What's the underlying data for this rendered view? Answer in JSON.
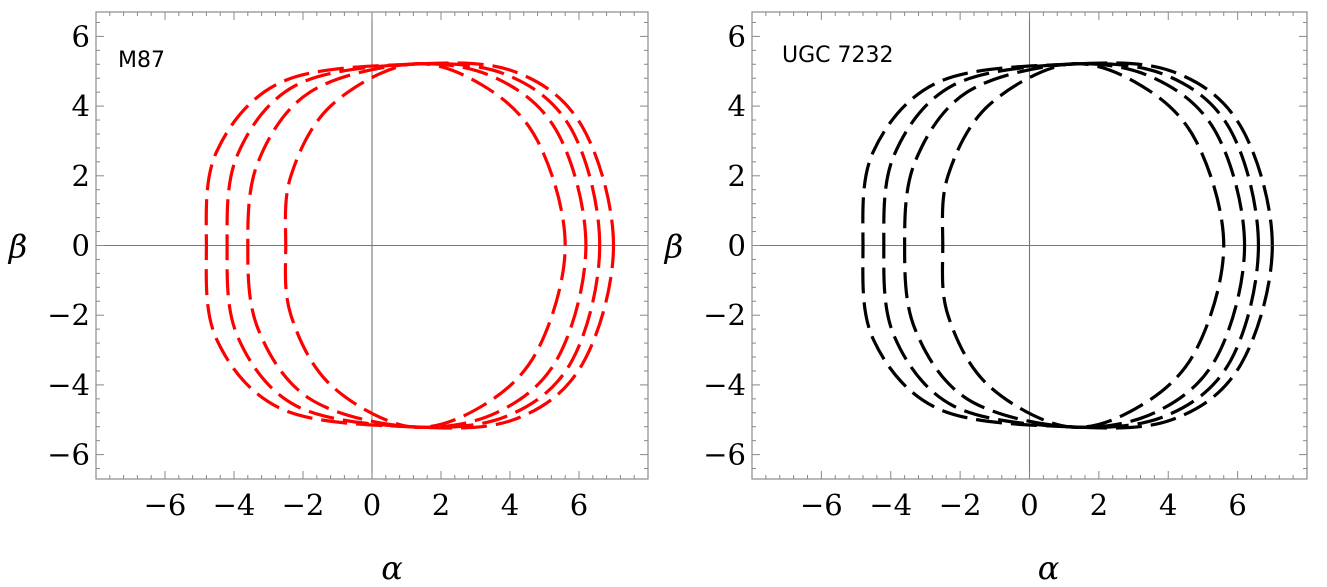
{
  "chart_data": [
    {
      "type": "line",
      "panel_label": "M87",
      "color": "#ff0000",
      "line_style": "dashed",
      "xlabel": "α",
      "ylabel": "β",
      "xlim": [
        -8,
        8
      ],
      "ylim": [
        -6.7,
        6.7
      ],
      "xticks": [
        -6,
        -4,
        -2,
        0,
        2,
        4,
        6
      ],
      "yticks": [
        -6,
        -4,
        -2,
        0,
        2,
        4,
        6
      ],
      "grid": false,
      "series": [
        {
          "points": [
            [
              5.6,
              0
            ],
            [
              4.8,
              3.0
            ],
            [
              3.2,
              4.6
            ],
            [
              1.1,
              5.2
            ],
            [
              -1.2,
              4.0
            ],
            [
              -2.35,
              2.0
            ],
            [
              -2.5,
              0
            ],
            [
              -2.35,
              -2.0
            ],
            [
              -1.2,
              -4.0
            ],
            [
              1.1,
              -5.2
            ],
            [
              3.2,
              -4.6
            ],
            [
              4.8,
              -3.0
            ],
            [
              5.6,
              0
            ]
          ]
        },
        {
          "points": [
            [
              6.2,
              0
            ],
            [
              5.4,
              3.2
            ],
            [
              3.6,
              4.8
            ],
            [
              1.1,
              5.2
            ],
            [
              -1.8,
              4.4
            ],
            [
              -3.3,
              2.4
            ],
            [
              -3.6,
              0
            ],
            [
              -3.3,
              -2.4
            ],
            [
              -1.8,
              -4.4
            ],
            [
              1.1,
              -5.2
            ],
            [
              3.6,
              -4.8
            ],
            [
              5.4,
              -3.2
            ],
            [
              6.2,
              0
            ]
          ]
        },
        {
          "points": [
            [
              6.6,
              0
            ],
            [
              5.8,
              3.3
            ],
            [
              3.9,
              4.9
            ],
            [
              1.1,
              5.2
            ],
            [
              -2.2,
              4.6
            ],
            [
              -3.9,
              2.6
            ],
            [
              -4.2,
              0
            ],
            [
              -3.9,
              -2.6
            ],
            [
              -2.2,
              -4.6
            ],
            [
              1.1,
              -5.2
            ],
            [
              3.9,
              -4.9
            ],
            [
              5.8,
              -3.3
            ],
            [
              6.6,
              0
            ]
          ]
        },
        {
          "points": [
            [
              7.0,
              0
            ],
            [
              6.1,
              3.4
            ],
            [
              4.1,
              5.0
            ],
            [
              1.1,
              5.2
            ],
            [
              -2.6,
              4.7
            ],
            [
              -4.5,
              2.7
            ],
            [
              -4.8,
              0
            ],
            [
              -4.5,
              -2.7
            ],
            [
              -2.6,
              -4.7
            ],
            [
              1.1,
              -5.2
            ],
            [
              4.1,
              -5.0
            ],
            [
              6.1,
              -3.4
            ],
            [
              7.0,
              0
            ]
          ]
        }
      ]
    },
    {
      "type": "line",
      "panel_label": "UGC 7232",
      "color": "#000000",
      "line_style": "dashed",
      "xlabel": "α",
      "ylabel": "β",
      "xlim": [
        -8,
        8
      ],
      "ylim": [
        -6.7,
        6.7
      ],
      "xticks": [
        -6,
        -4,
        -2,
        0,
        2,
        4,
        6
      ],
      "yticks": [
        -6,
        -4,
        -2,
        0,
        2,
        4,
        6
      ],
      "grid": false,
      "series": [
        {
          "points": [
            [
              5.6,
              0
            ],
            [
              4.8,
              3.0
            ],
            [
              3.2,
              4.6
            ],
            [
              1.1,
              5.2
            ],
            [
              -1.2,
              4.0
            ],
            [
              -2.35,
              2.0
            ],
            [
              -2.5,
              0
            ],
            [
              -2.35,
              -2.0
            ],
            [
              -1.2,
              -4.0
            ],
            [
              1.1,
              -5.2
            ],
            [
              3.2,
              -4.6
            ],
            [
              4.8,
              -3.0
            ],
            [
              5.6,
              0
            ]
          ]
        },
        {
          "points": [
            [
              6.2,
              0
            ],
            [
              5.4,
              3.2
            ],
            [
              3.6,
              4.8
            ],
            [
              1.1,
              5.2
            ],
            [
              -1.8,
              4.4
            ],
            [
              -3.3,
              2.4
            ],
            [
              -3.6,
              0
            ],
            [
              -3.3,
              -2.4
            ],
            [
              -1.8,
              -4.4
            ],
            [
              1.1,
              -5.2
            ],
            [
              3.6,
              -4.8
            ],
            [
              5.4,
              -3.2
            ],
            [
              6.2,
              0
            ]
          ]
        },
        {
          "points": [
            [
              6.6,
              0
            ],
            [
              5.8,
              3.3
            ],
            [
              3.9,
              4.9
            ],
            [
              1.1,
              5.2
            ],
            [
              -2.2,
              4.6
            ],
            [
              -3.9,
              2.6
            ],
            [
              -4.2,
              0
            ],
            [
              -3.9,
              -2.6
            ],
            [
              -2.2,
              -4.6
            ],
            [
              1.1,
              -5.2
            ],
            [
              3.9,
              -4.9
            ],
            [
              5.8,
              -3.3
            ],
            [
              6.6,
              0
            ]
          ]
        },
        {
          "points": [
            [
              7.0,
              0
            ],
            [
              6.1,
              3.4
            ],
            [
              4.1,
              5.0
            ],
            [
              1.1,
              5.2
            ],
            [
              -2.6,
              4.7
            ],
            [
              -4.5,
              2.7
            ],
            [
              -4.8,
              0
            ],
            [
              -4.5,
              -2.7
            ],
            [
              -2.6,
              -4.7
            ],
            [
              1.1,
              -5.2
            ],
            [
              4.1,
              -5.0
            ],
            [
              6.1,
              -3.4
            ],
            [
              7.0,
              0
            ]
          ]
        }
      ]
    }
  ]
}
